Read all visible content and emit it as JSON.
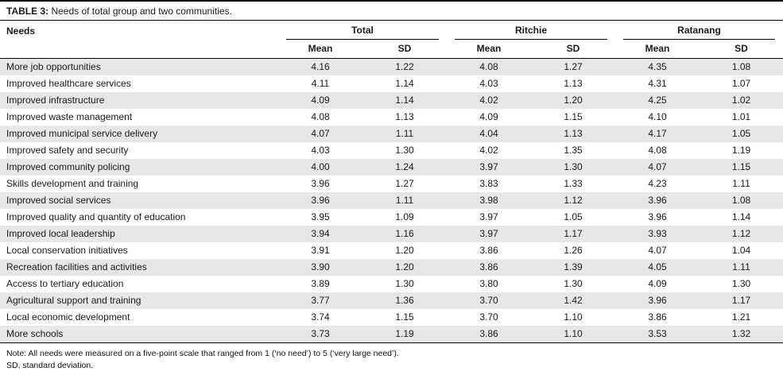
{
  "page": {
    "title_label": "TABLE 3:",
    "title_text": " Needs of total group and two communities."
  },
  "table": {
    "needs_header": "Needs",
    "groups": [
      {
        "name": "Total"
      },
      {
        "name": "Ritchie"
      },
      {
        "name": "Ratanang"
      }
    ],
    "subheaders": {
      "mean": "Mean",
      "sd": "SD"
    },
    "rows": [
      {
        "need": "More job opportunities",
        "values": [
          "4.16",
          "1.22",
          "4.08",
          "1.27",
          "4.35",
          "1.08"
        ]
      },
      {
        "need": "Improved healthcare services",
        "values": [
          "4.11",
          "1.14",
          "4.03",
          "1.13",
          "4.31",
          "1.07"
        ]
      },
      {
        "need": "Improved infrastructure",
        "values": [
          "4.09",
          "1.14",
          "4.02",
          "1.20",
          "4.25",
          "1.02"
        ]
      },
      {
        "need": "Improved waste management",
        "values": [
          "4.08",
          "1.13",
          "4.09",
          "1.15",
          "4.10",
          "1.01"
        ]
      },
      {
        "need": "Improved municipal service delivery",
        "values": [
          "4.07",
          "1.11",
          "4.04",
          "1.13",
          "4.17",
          "1.05"
        ]
      },
      {
        "need": "Improved safety and security",
        "values": [
          "4.03",
          "1.30",
          "4.02",
          "1.35",
          "4.08",
          "1.19"
        ]
      },
      {
        "need": "Improved community policing",
        "values": [
          "4.00",
          "1.24",
          "3.97",
          "1.30",
          "4.07",
          "1.15"
        ]
      },
      {
        "need": "Skills development and training",
        "values": [
          "3.96",
          "1.27",
          "3.83",
          "1.33",
          "4.23",
          "1.11"
        ]
      },
      {
        "need": "Improved social services",
        "values": [
          "3.96",
          "1.11",
          "3.98",
          "1.12",
          "3.96",
          "1.08"
        ]
      },
      {
        "need": "Improved quality and quantity of education",
        "values": [
          "3.95",
          "1.09",
          "3.97",
          "1.05",
          "3.96",
          "1.14"
        ]
      },
      {
        "need": "Improved local leadership",
        "values": [
          "3.94",
          "1.16",
          "3.97",
          "1.17",
          "3.93",
          "1.12"
        ]
      },
      {
        "need": "Local conservation initiatives",
        "values": [
          "3.91",
          "1.20",
          "3.86",
          "1.26",
          "4.07",
          "1.04"
        ]
      },
      {
        "need": "Recreation facilities and activities",
        "values": [
          "3.90",
          "1.20",
          "3.86",
          "1.39",
          "4.05",
          "1.11"
        ]
      },
      {
        "need": "Access to tertiary education",
        "values": [
          "3.89",
          "1.30",
          "3.80",
          "1.30",
          "4.09",
          "1.30"
        ]
      },
      {
        "need": "Agricultural support and training",
        "values": [
          "3.77",
          "1.36",
          "3.70",
          "1.42",
          "3.96",
          "1.17"
        ]
      },
      {
        "need": "Local economic development",
        "values": [
          "3.74",
          "1.15",
          "3.70",
          "1.10",
          "3.86",
          "1.21"
        ]
      },
      {
        "need": "More schools",
        "values": [
          "3.73",
          "1.19",
          "3.86",
          "1.10",
          "3.53",
          "1.32"
        ]
      }
    ]
  },
  "notes": {
    "line1": "Note: All needs were measured on a five-point scale that ranged from 1 (‘no need’) to 5 (‘very large need’).",
    "line2": "SD, standard deviation."
  },
  "colors": {
    "row_stripe": "#e7e7e7",
    "border": "#000000"
  }
}
